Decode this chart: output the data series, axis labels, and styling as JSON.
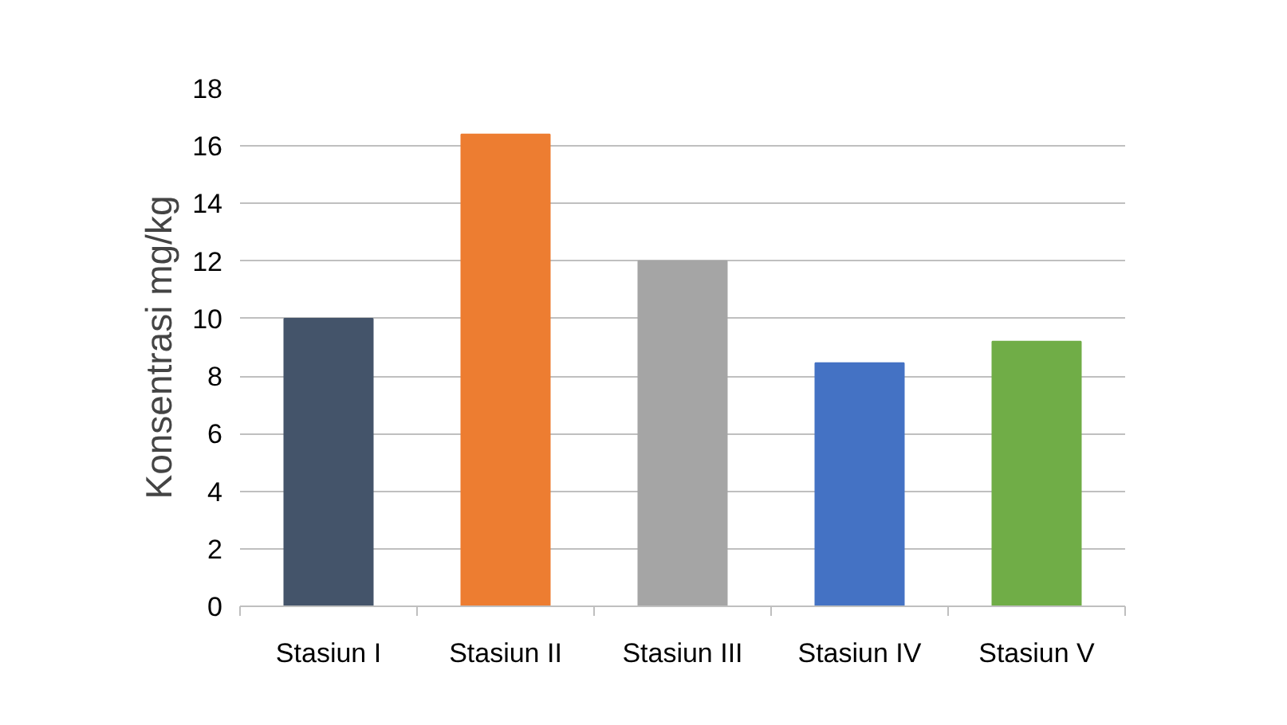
{
  "chart_data": {
    "type": "bar",
    "ylabel": "Konsentrasi mg/kg",
    "categories": [
      "Stasiun I",
      "Stasiun II",
      "Stasiun III",
      "Stasiun IV",
      "Stasiun V"
    ],
    "values": [
      10,
      16.4,
      12,
      8.45,
      9.2
    ],
    "colors": [
      "#44546a",
      "#ed7d31",
      "#a5a5a5",
      "#4472c4",
      "#70ad47"
    ],
    "ylim": [
      0,
      18
    ],
    "yticks": [
      0,
      2,
      4,
      6,
      8,
      10,
      12,
      14,
      16,
      18
    ],
    "grid": "y"
  }
}
